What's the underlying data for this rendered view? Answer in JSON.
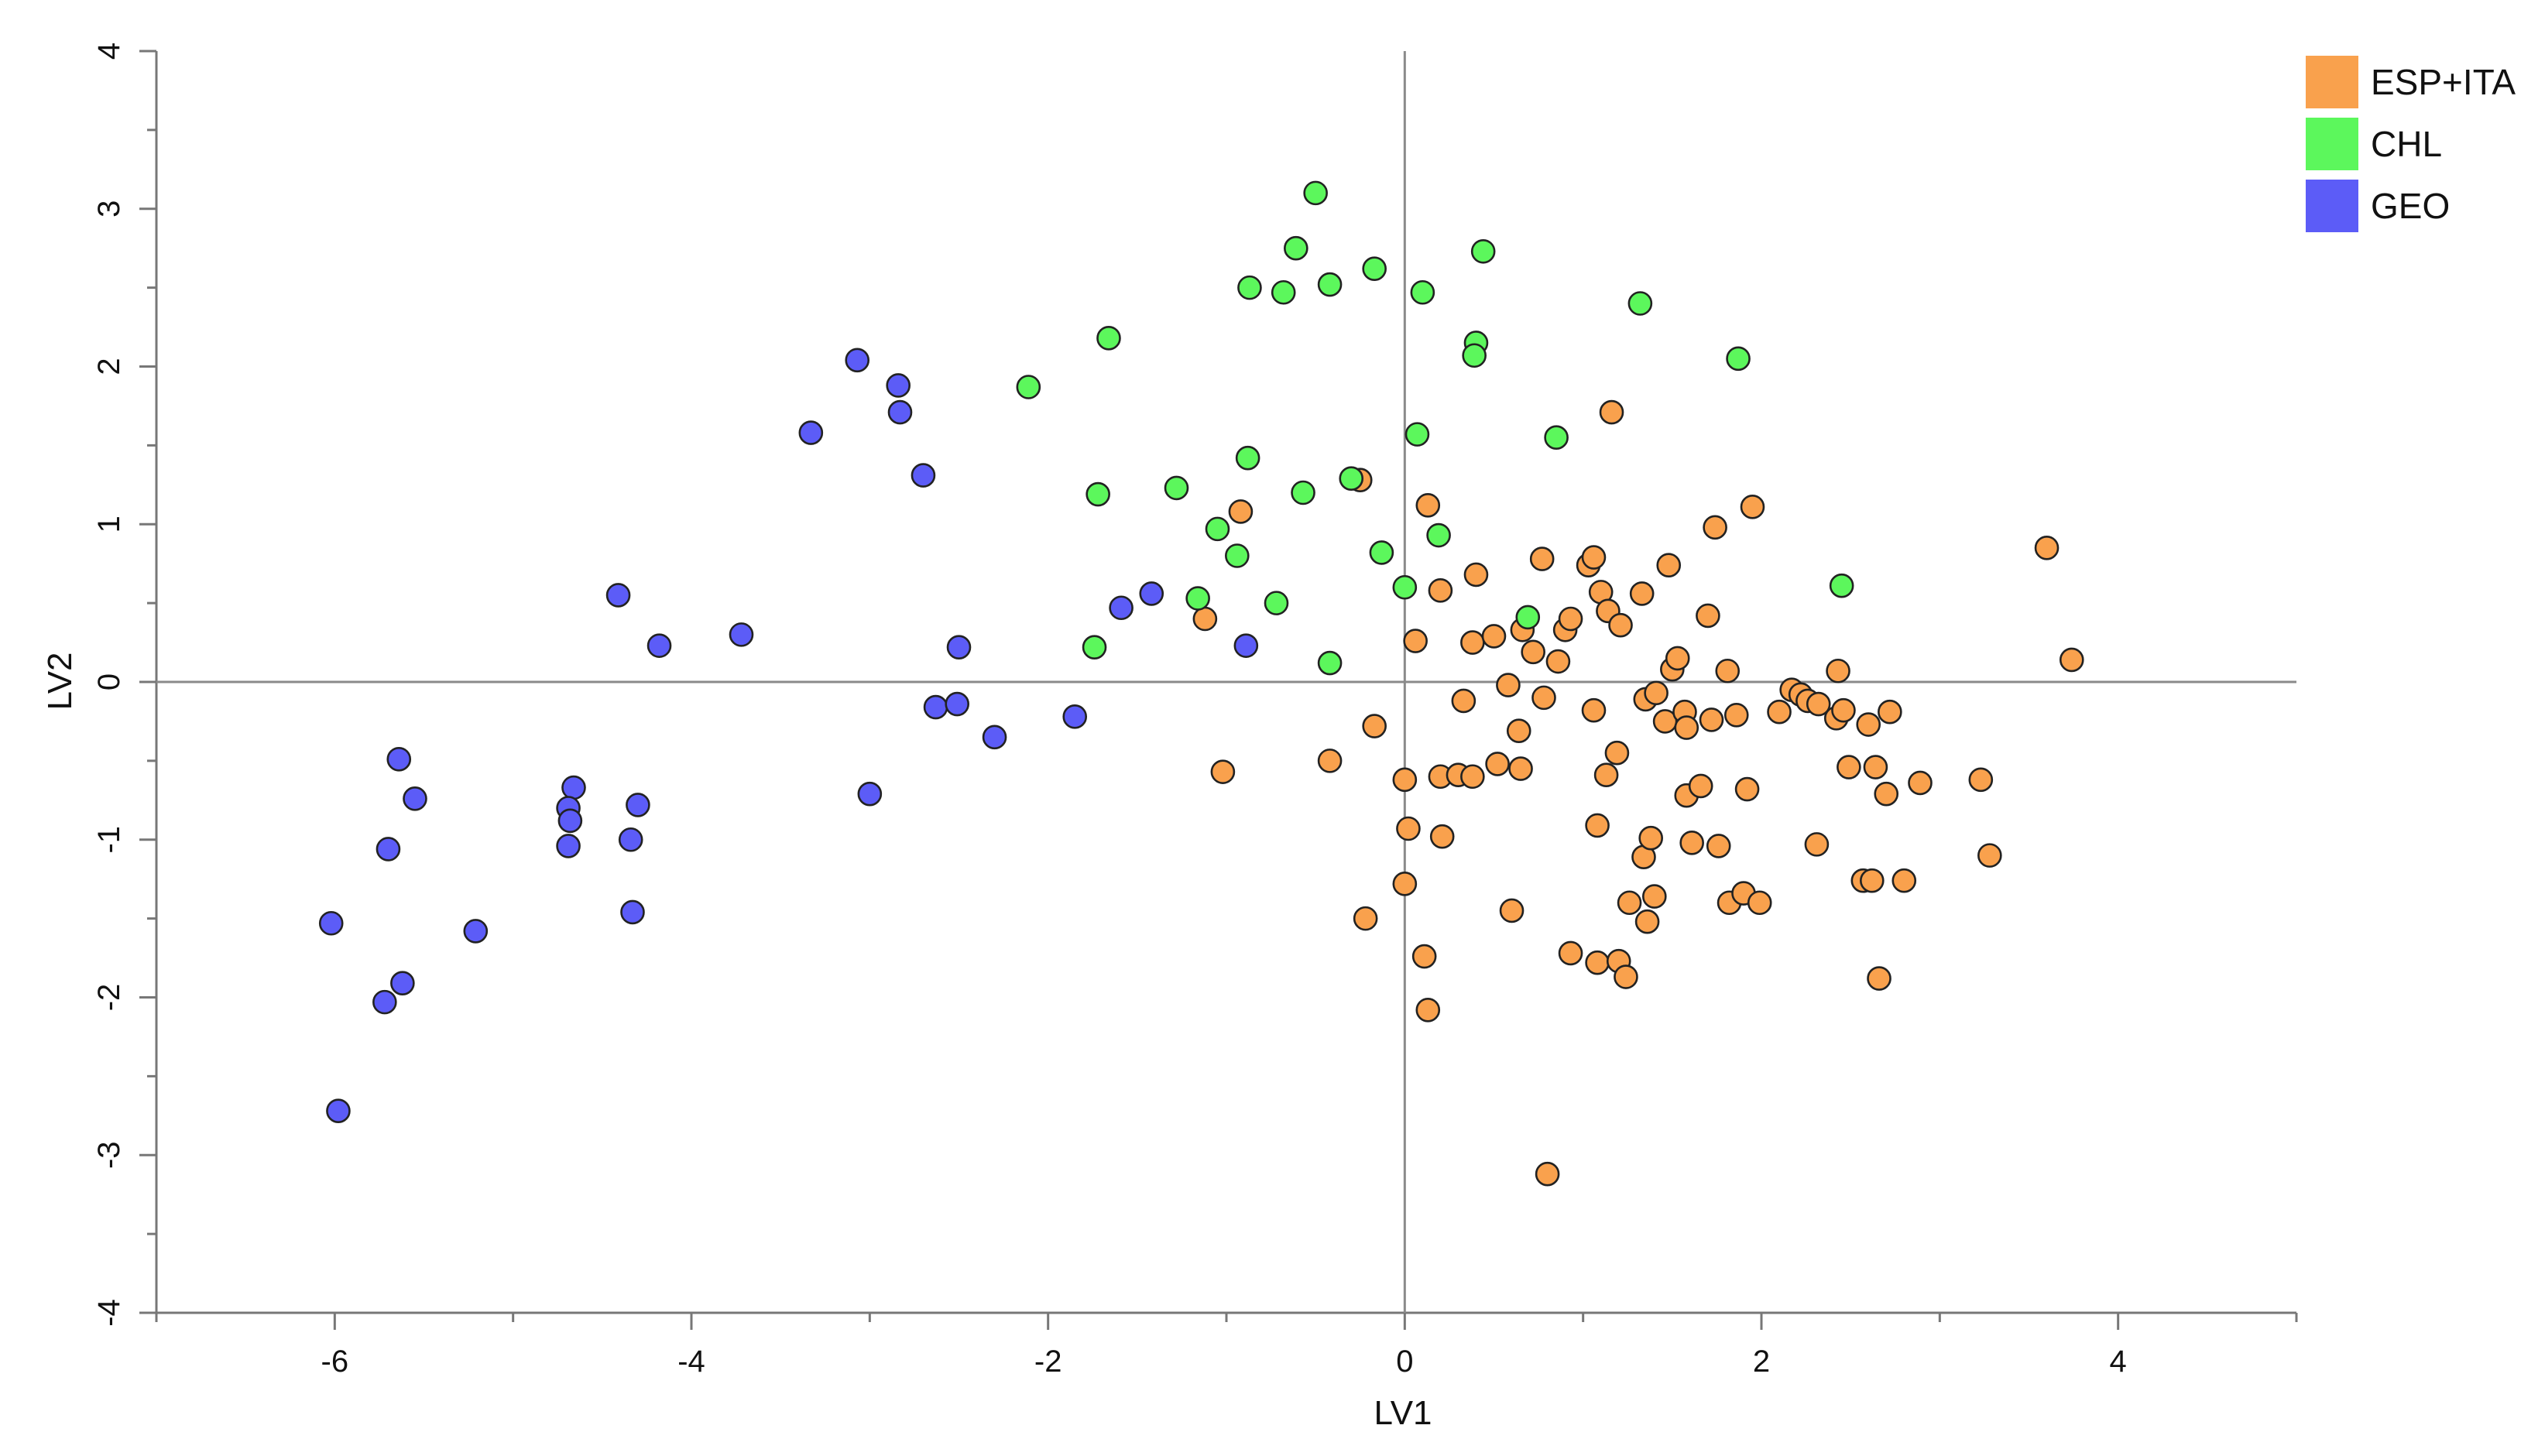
{
  "chart_data": {
    "type": "scatter",
    "title": "",
    "xlabel": "LV1",
    "ylabel": "LV2",
    "xlim": [
      -7,
      5
    ],
    "ylim": [
      -4,
      4
    ],
    "xticks": [
      -6,
      -4,
      -2,
      0,
      2,
      4
    ],
    "yticks": [
      -4,
      -3,
      -2,
      -1,
      0,
      1,
      2,
      3,
      4
    ],
    "xtick_labels": [
      "-6",
      "-4",
      "-2",
      "0",
      "2",
      "4"
    ],
    "ytick_labels": [
      "-4",
      "-3",
      "-2",
      "-1",
      "0",
      "1",
      "2",
      "3",
      "4"
    ],
    "legend_position": "top-right",
    "series": [
      {
        "name": "ESP+ITA",
        "color": "#f9a14d",
        "points": [
          [
            -0.25,
            1.28
          ],
          [
            -0.92,
            1.08
          ],
          [
            0.13,
            1.12
          ],
          [
            -1.12,
            0.4
          ],
          [
            -1.02,
            -0.57
          ],
          [
            -0.42,
            -0.5
          ],
          [
            -0.17,
            -0.28
          ],
          [
            0.0,
            -0.62
          ],
          [
            0.02,
            -0.93
          ],
          [
            0.0,
            -1.28
          ],
          [
            -0.22,
            -1.5
          ],
          [
            0.11,
            -1.74
          ],
          [
            0.13,
            -2.08
          ],
          [
            0.2,
            0.58
          ],
          [
            0.06,
            0.26
          ],
          [
            0.2,
            -0.6
          ],
          [
            0.21,
            -0.98
          ],
          [
            0.3,
            -0.59
          ],
          [
            0.33,
            -0.12
          ],
          [
            0.38,
            -0.6
          ],
          [
            0.38,
            0.25
          ],
          [
            0.4,
            0.68
          ],
          [
            0.5,
            0.29
          ],
          [
            0.52,
            -0.52
          ],
          [
            0.58,
            -0.02
          ],
          [
            0.6,
            -1.45
          ],
          [
            0.64,
            -0.31
          ],
          [
            0.65,
            -0.55
          ],
          [
            0.66,
            0.33
          ],
          [
            0.72,
            0.19
          ],
          [
            0.77,
            0.78
          ],
          [
            0.78,
            -0.1
          ],
          [
            0.8,
            -3.12
          ],
          [
            0.86,
            0.13
          ],
          [
            0.9,
            0.33
          ],
          [
            0.93,
            0.4
          ],
          [
            0.93,
            -1.72
          ],
          [
            1.03,
            0.74
          ],
          [
            1.06,
            -0.18
          ],
          [
            1.06,
            0.79
          ],
          [
            1.08,
            -0.91
          ],
          [
            1.08,
            -1.78
          ],
          [
            1.1,
            0.57
          ],
          [
            1.13,
            -0.59
          ],
          [
            1.14,
            0.45
          ],
          [
            1.16,
            1.71
          ],
          [
            1.19,
            -0.45
          ],
          [
            1.2,
            -1.77
          ],
          [
            1.21,
            0.36
          ],
          [
            1.24,
            -1.87
          ],
          [
            1.26,
            -1.4
          ],
          [
            1.33,
            0.56
          ],
          [
            1.34,
            -1.11
          ],
          [
            1.35,
            -0.11
          ],
          [
            1.36,
            -1.52
          ],
          [
            1.38,
            -0.99
          ],
          [
            1.4,
            -1.36
          ],
          [
            1.41,
            -0.07
          ],
          [
            1.46,
            -0.25
          ],
          [
            1.48,
            0.74
          ],
          [
            1.5,
            0.08
          ],
          [
            1.53,
            0.15
          ],
          [
            1.57,
            -0.19
          ],
          [
            1.58,
            -0.29
          ],
          [
            1.58,
            -0.72
          ],
          [
            1.61,
            -1.02
          ],
          [
            1.66,
            -0.66
          ],
          [
            1.7,
            0.42
          ],
          [
            1.72,
            -0.24
          ],
          [
            1.74,
            0.98
          ],
          [
            1.76,
            -1.04
          ],
          [
            1.81,
            0.07
          ],
          [
            1.82,
            -1.4
          ],
          [
            1.86,
            -0.21
          ],
          [
            1.9,
            -1.34
          ],
          [
            1.92,
            -0.68
          ],
          [
            1.95,
            1.11
          ],
          [
            1.99,
            -1.4
          ],
          [
            2.1,
            -0.19
          ],
          [
            2.17,
            -0.05
          ],
          [
            2.22,
            -0.08
          ],
          [
            2.26,
            -0.12
          ],
          [
            2.31,
            -1.03
          ],
          [
            2.32,
            -0.14
          ],
          [
            2.42,
            -0.23
          ],
          [
            2.43,
            0.07
          ],
          [
            2.46,
            -0.18
          ],
          [
            2.49,
            -0.54
          ],
          [
            2.57,
            -1.26
          ],
          [
            2.6,
            -0.27
          ],
          [
            2.62,
            -1.26
          ],
          [
            2.64,
            -0.54
          ],
          [
            2.66,
            -1.88
          ],
          [
            2.7,
            -0.71
          ],
          [
            2.72,
            -0.19
          ],
          [
            2.8,
            -1.26
          ],
          [
            2.89,
            -0.64
          ],
          [
            3.23,
            -0.62
          ],
          [
            3.28,
            -1.1
          ],
          [
            3.6,
            0.85
          ],
          [
            3.74,
            0.14
          ]
        ]
      },
      {
        "name": "CHL",
        "color": "#5cf75c",
        "points": [
          [
            -0.5,
            3.1
          ],
          [
            -0.61,
            2.75
          ],
          [
            -0.87,
            2.5
          ],
          [
            -0.68,
            2.47
          ],
          [
            -0.42,
            2.52
          ],
          [
            -0.17,
            2.62
          ],
          [
            0.1,
            2.47
          ],
          [
            0.44,
            2.73
          ],
          [
            1.32,
            2.4
          ],
          [
            -1.66,
            2.18
          ],
          [
            -2.11,
            1.87
          ],
          [
            0.4,
            2.15
          ],
          [
            0.39,
            2.07
          ],
          [
            1.87,
            2.05
          ],
          [
            0.07,
            1.57
          ],
          [
            0.85,
            1.55
          ],
          [
            -0.88,
            1.42
          ],
          [
            -1.72,
            1.19
          ],
          [
            -1.28,
            1.23
          ],
          [
            -0.57,
            1.2
          ],
          [
            -0.3,
            1.29
          ],
          [
            -1.05,
            0.97
          ],
          [
            0.19,
            0.93
          ],
          [
            -0.13,
            0.82
          ],
          [
            -0.94,
            0.8
          ],
          [
            0.0,
            0.6
          ],
          [
            -1.16,
            0.53
          ],
          [
            -0.72,
            0.5
          ],
          [
            0.69,
            0.41
          ],
          [
            2.45,
            0.61
          ],
          [
            -1.74,
            0.22
          ],
          [
            -0.42,
            0.12
          ]
        ]
      },
      {
        "name": "GEO",
        "color": "#5c5cf7",
        "points": [
          [
            -3.07,
            2.04
          ],
          [
            -2.84,
            1.88
          ],
          [
            -2.83,
            1.71
          ],
          [
            -3.33,
            1.58
          ],
          [
            -2.7,
            1.31
          ],
          [
            -4.41,
            0.55
          ],
          [
            -1.42,
            0.56
          ],
          [
            -1.59,
            0.47
          ],
          [
            -3.72,
            0.3
          ],
          [
            -4.18,
            0.23
          ],
          [
            -2.5,
            0.22
          ],
          [
            -0.89,
            0.23
          ],
          [
            -2.63,
            -0.16
          ],
          [
            -2.51,
            -0.14
          ],
          [
            -1.85,
            -0.22
          ],
          [
            -2.3,
            -0.35
          ],
          [
            -5.64,
            -0.49
          ],
          [
            -4.66,
            -0.67
          ],
          [
            -5.55,
            -0.74
          ],
          [
            -3.0,
            -0.71
          ],
          [
            -4.69,
            -0.8
          ],
          [
            -4.3,
            -0.78
          ],
          [
            -4.68,
            -0.88
          ],
          [
            -5.7,
            -1.06
          ],
          [
            -4.69,
            -1.04
          ],
          [
            -4.34,
            -1.0
          ],
          [
            -4.33,
            -1.46
          ],
          [
            -6.02,
            -1.53
          ],
          [
            -5.21,
            -1.58
          ],
          [
            -5.62,
            -1.91
          ],
          [
            -5.72,
            -2.03
          ],
          [
            -5.98,
            -2.72
          ]
        ]
      }
    ]
  }
}
